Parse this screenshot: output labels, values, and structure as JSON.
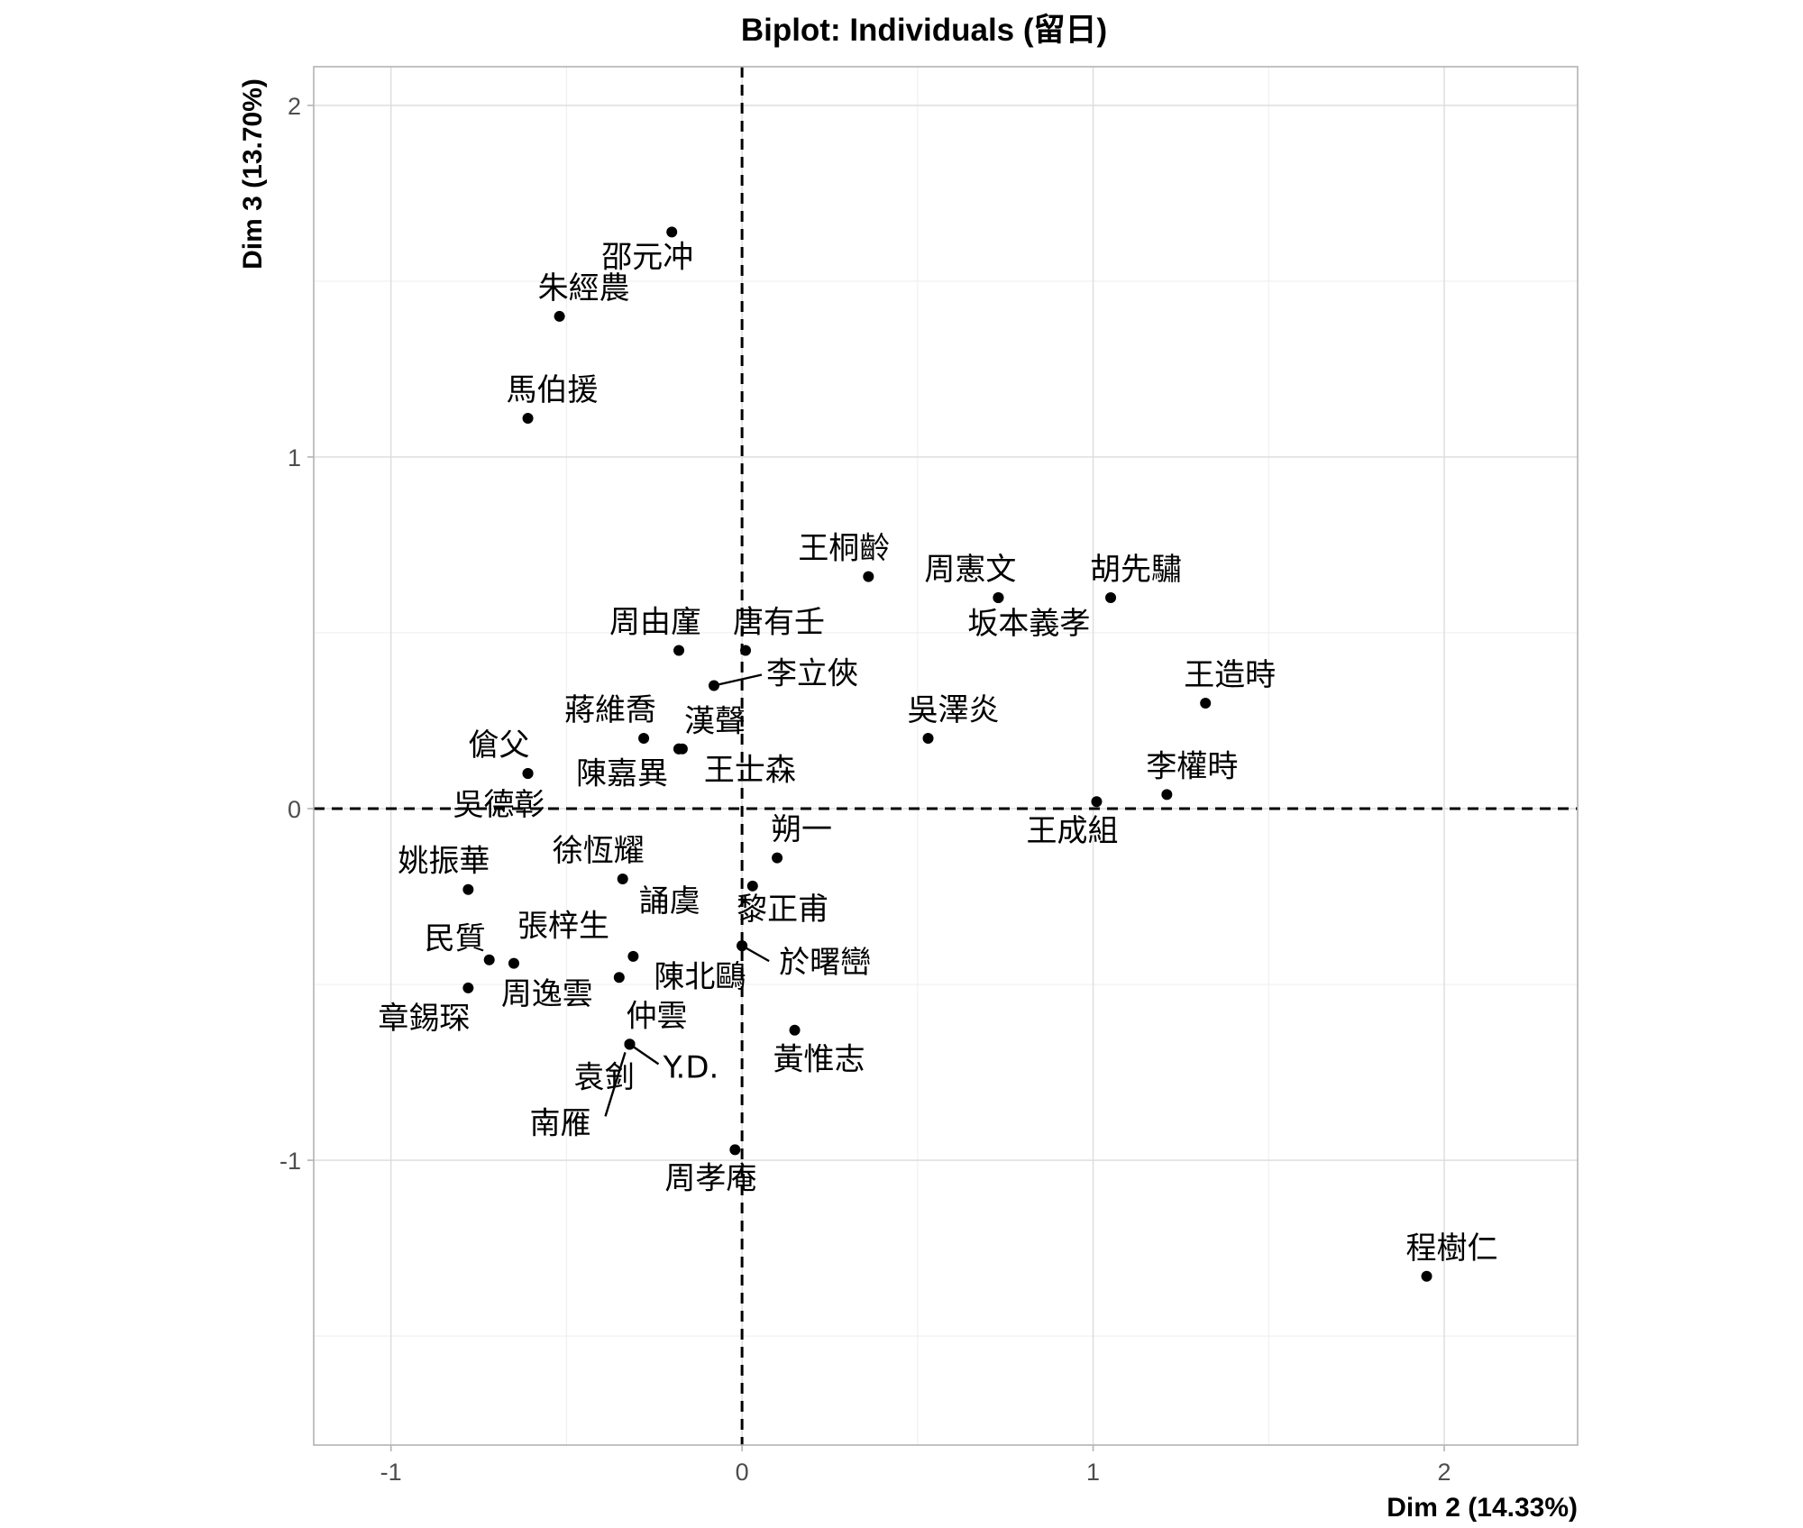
{
  "chart_data": {
    "type": "scatter",
    "title": "Biplot: Individuals (留日)",
    "xlabel": "Dim 2 (14.33%)",
    "ylabel": "Dim 3 (13.70%)",
    "xlim": [
      -1.22,
      2.38
    ],
    "ylim": [
      -1.81,
      2.11
    ],
    "x_ticks": [
      -1,
      0,
      1,
      2
    ],
    "y_ticks": [
      -1,
      0,
      1,
      2
    ],
    "x_tick_labels": [
      "-1",
      "0",
      "1",
      "2"
    ],
    "y_tick_labels": [
      "-1",
      "0",
      "1",
      "2"
    ],
    "grid": true,
    "reference_lines": {
      "x": 0,
      "y": 0,
      "style": "dashed"
    },
    "points": [
      {
        "label": "邵元冲",
        "x": -0.2,
        "y": 1.64
      },
      {
        "label": "朱經農",
        "x": -0.52,
        "y": 1.4
      },
      {
        "label": "馬伯援",
        "x": -0.61,
        "y": 1.11
      },
      {
        "label": "王桐齡",
        "x": 0.36,
        "y": 0.66
      },
      {
        "label": "周憲文",
        "x": 0.73,
        "y": 0.6
      },
      {
        "label": "胡先驌",
        "x": 1.05,
        "y": 0.6
      },
      {
        "label": "坂本義孝",
        "x": 0.73,
        "y": 0.6
      },
      {
        "label": "周由廑",
        "x": -0.18,
        "y": 0.45
      },
      {
        "label": "唐有壬",
        "x": 0.01,
        "y": 0.45
      },
      {
        "label": "李立俠",
        "x": -0.08,
        "y": 0.35
      },
      {
        "label": "王造時",
        "x": 1.32,
        "y": 0.3
      },
      {
        "label": "吳澤炎",
        "x": 0.53,
        "y": 0.2
      },
      {
        "label": "蔣維喬",
        "x": -0.28,
        "y": 0.2
      },
      {
        "label": "漢聲",
        "x": -0.18,
        "y": 0.17
      },
      {
        "label": "王士森",
        "x": -0.17,
        "y": 0.17
      },
      {
        "label": "陳嘉異",
        "x": -0.18,
        "y": 0.17
      },
      {
        "label": "傖父",
        "x": -0.61,
        "y": 0.1
      },
      {
        "label": "吳德彰",
        "x": -0.61,
        "y": 0.1
      },
      {
        "label": "李權時",
        "x": 1.21,
        "y": 0.04
      },
      {
        "label": "王成組",
        "x": 1.01,
        "y": 0.02
      },
      {
        "label": "朔一",
        "x": 0.1,
        "y": -0.14
      },
      {
        "label": "徐恆耀",
        "x": -0.34,
        "y": -0.2
      },
      {
        "label": "誦虞",
        "x": 0.03,
        "y": -0.22
      },
      {
        "label": "姚振華",
        "x": -0.78,
        "y": -0.23
      },
      {
        "label": "黎正甫",
        "x": 0.0,
        "y": -0.39
      },
      {
        "label": "於曙巒",
        "x": 0.0,
        "y": -0.39
      },
      {
        "label": "民質",
        "x": -0.72,
        "y": -0.43
      },
      {
        "label": "張梓生",
        "x": -0.65,
        "y": -0.44
      },
      {
        "label": "陳北鷗",
        "x": -0.31,
        "y": -0.42
      },
      {
        "label": "周逸雲",
        "x": -0.35,
        "y": -0.48
      },
      {
        "label": "章錫琛",
        "x": -0.78,
        "y": -0.51
      },
      {
        "label": "黃惟志",
        "x": 0.15,
        "y": -0.63
      },
      {
        "label": "仲雲",
        "x": -0.32,
        "y": -0.67
      },
      {
        "label": "Y.D.",
        "x": -0.32,
        "y": -0.67
      },
      {
        "label": "袁釗",
        "x": -0.32,
        "y": -0.67
      },
      {
        "label": "南雁",
        "x": -0.32,
        "y": -0.67
      },
      {
        "label": "周孝庵",
        "x": -0.02,
        "y": -0.97
      },
      {
        "label": "程樹仁",
        "x": 1.95,
        "y": -1.33
      }
    ]
  }
}
